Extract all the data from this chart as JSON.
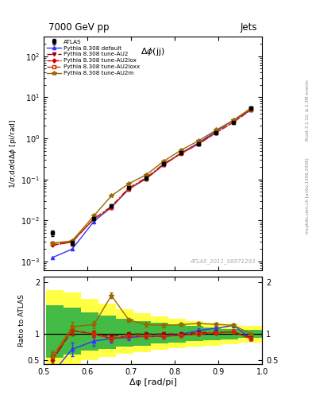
{
  "title_top": "7000 GeV pp",
  "title_right": "Jets",
  "plot_title": "Δφ(jj)",
  "watermark": "ATLAS_2011_S8971293",
  "right_label_top": "Rivet 3.1.10, ≥ 2.3M events",
  "right_label_bot": "mcplots.cern.ch [arXiv:1306.3436]",
  "xlabel": "Δφ [rad/pi]",
  "ylabel_main": "1/σ;dσ/dΔφ [pi/rad]",
  "ylabel_ratio": "Ratio to ATLAS",
  "atlas_x": [
    0.52,
    0.565,
    0.615,
    0.655,
    0.695,
    0.735,
    0.775,
    0.815,
    0.855,
    0.895,
    0.935,
    0.975
  ],
  "atlas_y": [
    0.005,
    0.0028,
    0.011,
    0.023,
    0.062,
    0.11,
    0.24,
    0.44,
    0.73,
    1.35,
    2.4,
    5.5
  ],
  "atlas_yerr": [
    0.0008,
    0.0004,
    0.001,
    0.002,
    0.005,
    0.009,
    0.018,
    0.03,
    0.05,
    0.09,
    0.15,
    0.35
  ],
  "pythia_default_x": [
    0.52,
    0.565,
    0.615,
    0.655,
    0.695,
    0.735,
    0.775,
    0.815,
    0.855,
    0.895,
    0.935,
    0.975
  ],
  "pythia_default_y": [
    0.00125,
    0.002,
    0.0095,
    0.021,
    0.058,
    0.105,
    0.23,
    0.44,
    0.78,
    1.5,
    2.8,
    5.0
  ],
  "pythia_AU2_x": [
    0.52,
    0.565,
    0.615,
    0.655,
    0.695,
    0.735,
    0.775,
    0.815,
    0.855,
    0.895,
    0.935,
    0.975
  ],
  "pythia_AU2_y": [
    0.0025,
    0.003,
    0.011,
    0.022,
    0.062,
    0.11,
    0.24,
    0.44,
    0.75,
    1.4,
    2.5,
    5.1
  ],
  "pythia_AU2lox_x": [
    0.52,
    0.565,
    0.615,
    0.655,
    0.695,
    0.735,
    0.775,
    0.815,
    0.855,
    0.895,
    0.935,
    0.975
  ],
  "pythia_AU2lox_y": [
    0.0025,
    0.003,
    0.011,
    0.021,
    0.06,
    0.105,
    0.23,
    0.43,
    0.73,
    1.38,
    2.5,
    5.0
  ],
  "pythia_AU2loxx_x": [
    0.52,
    0.565,
    0.615,
    0.655,
    0.695,
    0.735,
    0.775,
    0.815,
    0.855,
    0.895,
    0.935,
    0.975
  ],
  "pythia_AU2loxx_y": [
    0.0028,
    0.003,
    0.011,
    0.021,
    0.059,
    0.105,
    0.23,
    0.43,
    0.73,
    1.38,
    2.5,
    5.0
  ],
  "pythia_AU2m_x": [
    0.52,
    0.565,
    0.615,
    0.655,
    0.695,
    0.735,
    0.775,
    0.815,
    0.855,
    0.895,
    0.935,
    0.975
  ],
  "pythia_AU2m_y": [
    0.0028,
    0.0032,
    0.013,
    0.04,
    0.079,
    0.13,
    0.28,
    0.52,
    0.88,
    1.6,
    2.8,
    5.5
  ],
  "ratio_default": [
    0.25,
    0.71,
    0.864,
    0.913,
    0.935,
    0.955,
    0.958,
    1.0,
    1.068,
    1.111,
    1.167,
    0.909
  ],
  "ratio_AU2": [
    0.5,
    1.07,
    1.0,
    0.957,
    1.0,
    1.0,
    1.0,
    1.0,
    1.027,
    1.037,
    1.042,
    0.927
  ],
  "ratio_AU2lox": [
    0.5,
    1.07,
    1.0,
    0.913,
    0.968,
    0.955,
    0.958,
    0.977,
    1.0,
    1.022,
    1.042,
    0.909
  ],
  "ratio_AU2loxx": [
    0.56,
    1.07,
    1.0,
    0.913,
    0.952,
    0.955,
    0.958,
    0.977,
    1.0,
    1.022,
    1.042,
    0.909
  ],
  "ratio_AU2m": [
    0.56,
    1.14,
    1.18,
    1.74,
    1.27,
    1.18,
    1.167,
    1.182,
    1.205,
    1.185,
    1.167,
    1.0
  ],
  "ratio_yerr": [
    0.16,
    0.13,
    0.09,
    0.07,
    0.055,
    0.05,
    0.045,
    0.04,
    0.038,
    0.037,
    0.036,
    0.035
  ],
  "band_x_edges": [
    0.505,
    0.545,
    0.585,
    0.625,
    0.665,
    0.705,
    0.745,
    0.785,
    0.825,
    0.865,
    0.905,
    0.945,
    1.0
  ],
  "band_yellow_lo": [
    0.35,
    0.4,
    0.5,
    0.56,
    0.62,
    0.66,
    0.7,
    0.73,
    0.76,
    0.78,
    0.8,
    0.84
  ],
  "band_yellow_hi": [
    1.85,
    1.8,
    1.68,
    1.58,
    1.48,
    1.4,
    1.34,
    1.29,
    1.25,
    1.22,
    1.2,
    1.16
  ],
  "band_green_lo": [
    0.55,
    0.6,
    0.68,
    0.72,
    0.76,
    0.78,
    0.82,
    0.84,
    0.86,
    0.88,
    0.9,
    0.92
  ],
  "band_green_hi": [
    1.55,
    1.5,
    1.42,
    1.36,
    1.3,
    1.25,
    1.21,
    1.18,
    1.15,
    1.12,
    1.1,
    1.08
  ],
  "color_default": "#3333ff",
  "color_AU2": "#990000",
  "color_AU2lox": "#cc0000",
  "color_AU2loxx": "#cc3300",
  "color_AU2m": "#996600",
  "color_atlas": "#000000",
  "color_yellow": "#ffff44",
  "color_green": "#44bb44",
  "xlim": [
    0.5,
    1.0
  ],
  "ylim_main": [
    0.0006,
    300.0
  ],
  "ylim_ratio": [
    0.42,
    2.1
  ],
  "yticks_ratio": [
    0.5,
    1.0,
    2.0
  ]
}
